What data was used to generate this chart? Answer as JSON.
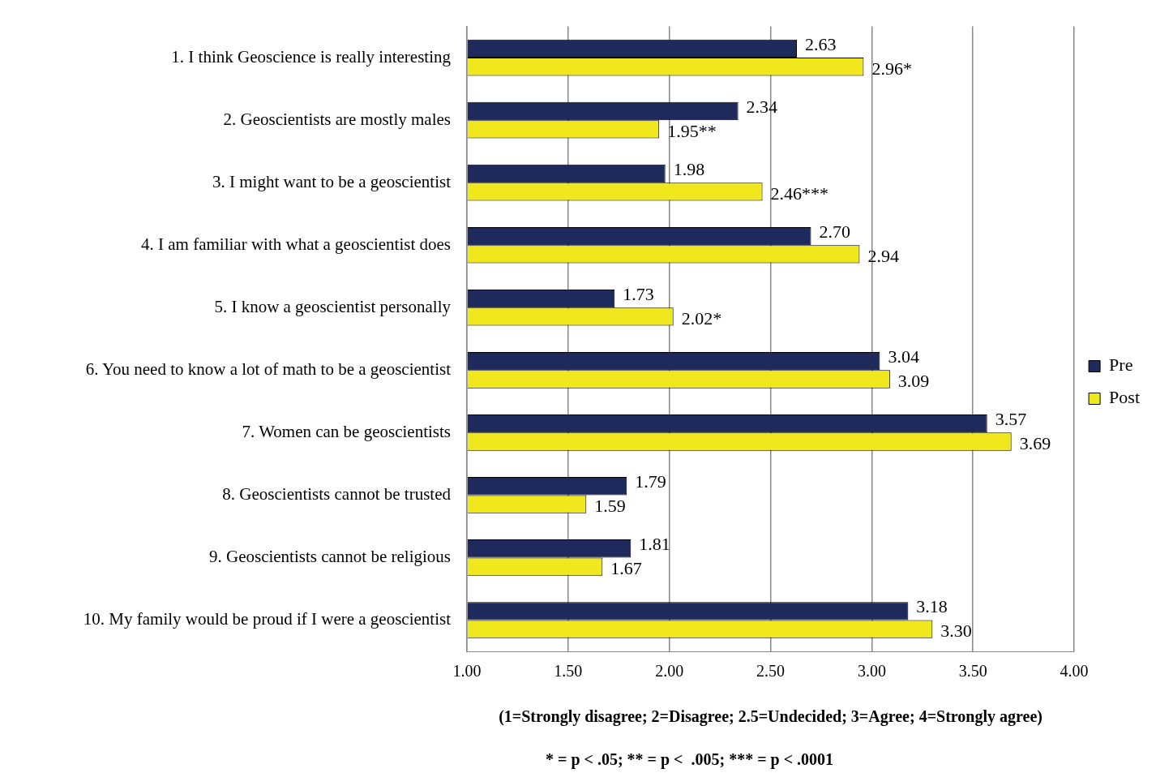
{
  "chart_data": {
    "type": "bar",
    "orientation": "horizontal",
    "categories": [
      "1. I think Geoscience is really interesting",
      "2. Geoscientists are mostly males",
      "3. I might want to be a geoscientist",
      "4. I am familiar with what a geoscientist does",
      "5. I know a geoscientist personally",
      "6. You need to know a lot of math to be a geoscientist",
      "7. Women can be geoscientists",
      "8. Geoscientists cannot be trusted",
      "9. Geoscientists cannot be religious",
      "10. My family would be proud if I were a geoscientist"
    ],
    "series": [
      {
        "name": "Pre",
        "color": "#1f2a5c",
        "values": [
          2.63,
          2.34,
          1.98,
          2.7,
          1.73,
          3.04,
          3.57,
          1.79,
          1.81,
          3.18
        ],
        "value_labels": [
          "2.63",
          "2.34",
          "1.98",
          "2.70",
          "1.73",
          "3.04",
          "3.57",
          "1.79",
          "1.81",
          "3.18"
        ]
      },
      {
        "name": "Post",
        "color": "#f0e81c",
        "values": [
          2.96,
          1.95,
          2.46,
          2.94,
          2.02,
          3.09,
          3.69,
          1.59,
          1.67,
          3.3
        ],
        "value_labels": [
          "2.96*",
          "1.95**",
          "2.46***",
          "2.94",
          "2.02*",
          "3.09",
          "3.69",
          "1.59",
          "1.67",
          "3.30"
        ]
      }
    ],
    "xlim": [
      1,
      4
    ],
    "xticks": [
      {
        "value": 1,
        "label": "1.00"
      },
      {
        "value": 1.5,
        "label": "1.50"
      },
      {
        "value": 2,
        "label": "2.00"
      },
      {
        "value": 2.5,
        "label": "2.50"
      },
      {
        "value": 3,
        "label": "3.00"
      },
      {
        "value": 3.5,
        "label": "3.50"
      },
      {
        "value": 4,
        "label": "4.00"
      }
    ],
    "xlabel": "(1=Strongly disagree; 2=Disagree; 2.5=Undecided; 3=Agree; 4=Strongly agree)",
    "annotations": [
      "* = p < .05; ** = p <  .005; *** = p < .0001"
    ],
    "grid": "x",
    "legend": "right"
  }
}
